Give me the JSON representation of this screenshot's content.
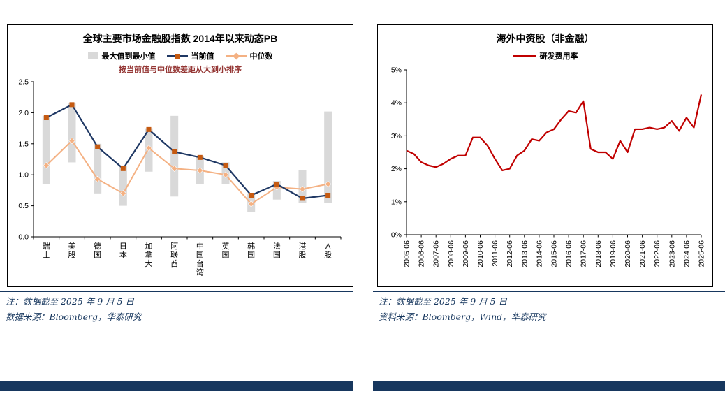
{
  "page": {
    "accent_navy": "#17375E",
    "background": "#FFFFFF"
  },
  "left_panel": {
    "title": "全球主要市场金融股指数 2014年以来动态PB",
    "subtitle": "按当前值与中位数差距从大到小排序",
    "legend": {
      "range": "最大值到最小值",
      "current": "当前值",
      "median": "中位数"
    },
    "note": "注：数据截至 2025 年 9 月 5 日",
    "source": "数据来源：Bloomberg，华泰研究"
  },
  "right_panel": {
    "title": "海外中资股（非金融）",
    "legend": {
      "series": "研发费用率"
    },
    "note": "注：数据截至 2025 年 9 月 5 日",
    "source": "资料来源：Bloomberg，Wind，华泰研究"
  },
  "chart_data": [
    {
      "type": "bar",
      "title": "全球主要市场金融股指数 2014年以来动态PB",
      "subtitle": "按当前值与中位数差距从大到小排序",
      "categories": [
        "瑞士",
        "美股",
        "德国",
        "日本",
        "加拿大",
        "阿联酋",
        "中国台湾",
        "英国",
        "韩国",
        "法国",
        "港股",
        "A股"
      ],
      "ylim": [
        0,
        2.5
      ],
      "ytick_step": 0.5,
      "grid": false,
      "legend_position": "top",
      "series": [
        {
          "name": "最大值到最小值",
          "type": "range_bar",
          "color": "#D9D9D9",
          "min": [
            0.85,
            1.2,
            0.7,
            0.5,
            1.05,
            0.65,
            0.85,
            0.85,
            0.4,
            0.6,
            0.55,
            0.55
          ],
          "max": [
            1.95,
            2.15,
            1.5,
            1.15,
            1.75,
            1.95,
            1.3,
            1.2,
            0.7,
            0.9,
            1.08,
            2.02
          ]
        },
        {
          "name": "当前值",
          "type": "line",
          "line_color": "#1F3864",
          "marker": "square",
          "marker_color": "#C55A11",
          "values": [
            1.92,
            2.13,
            1.45,
            1.1,
            1.73,
            1.37,
            1.28,
            1.15,
            0.67,
            0.85,
            0.62,
            0.67
          ]
        },
        {
          "name": "中位数",
          "type": "line",
          "line_color": "#F4B183",
          "marker": "diamond",
          "marker_color": "#F4B183",
          "values": [
            1.15,
            1.55,
            0.93,
            0.7,
            1.43,
            1.1,
            1.07,
            1.0,
            0.53,
            0.8,
            0.77,
            0.85
          ]
        }
      ]
    },
    {
      "type": "line",
      "title": "海外中资股（非金融）",
      "ylim": [
        0,
        5
      ],
      "y_unit": "%",
      "grid": false,
      "legend_position": "top",
      "points_per_label": 2,
      "x_labels": [
        "2005-06",
        "2006-06",
        "2007-06",
        "2008-06",
        "2009-06",
        "2010-06",
        "2011-06",
        "2012-06",
        "2013-06",
        "2014-06",
        "2015-06",
        "2016-06",
        "2017-06",
        "2018-06",
        "2019-06",
        "2020-06",
        "2021-06",
        "2022-06",
        "2023-06",
        "2024-06",
        "2025-06"
      ],
      "series": [
        {
          "name": "研发费用率",
          "color": "#C00000",
          "values": [
            2.55,
            2.45,
            2.2,
            2.1,
            2.05,
            2.15,
            2.3,
            2.4,
            2.4,
            2.95,
            2.95,
            2.7,
            2.3,
            1.95,
            2.0,
            2.4,
            2.55,
            2.9,
            2.85,
            3.1,
            3.2,
            3.5,
            3.75,
            3.7,
            4.05,
            2.6,
            2.5,
            2.5,
            2.3,
            2.85,
            2.5,
            3.2,
            3.2,
            3.25,
            3.2,
            3.25,
            3.45,
            3.15,
            3.55,
            3.25,
            4.25
          ]
        }
      ]
    }
  ]
}
